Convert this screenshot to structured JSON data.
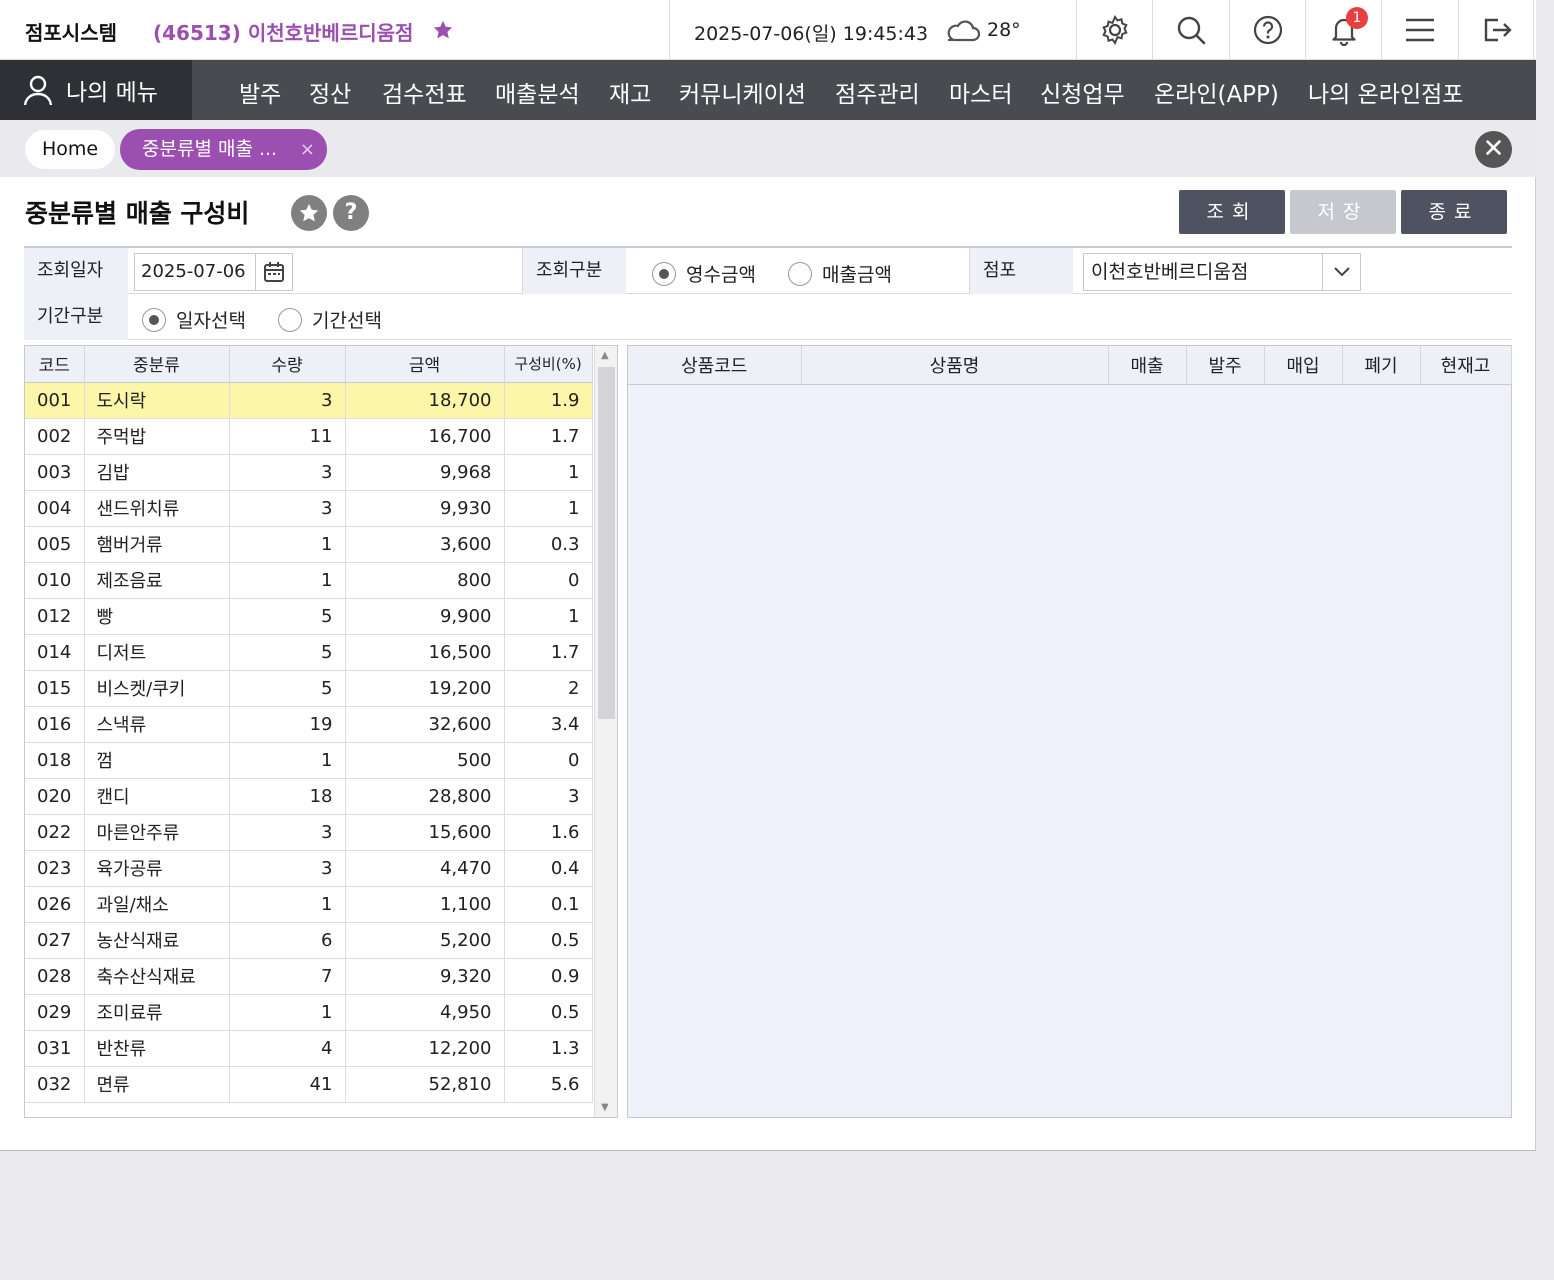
{
  "header": {
    "app_title": "점포시스템",
    "store": "(46513) 이천호반베르디움점",
    "datetime": "2025-07-06(일) 19:45:43",
    "temperature": "28°",
    "notification_count": "1",
    "brand_color": "#9b4fb0"
  },
  "nav": {
    "my_menu": "나의 메뉴",
    "items": [
      "발주",
      "정산",
      "검수전표",
      "매출분석",
      "재고",
      "커뮤니케이션",
      "점주관리",
      "마스터",
      "신청업무",
      "온라인(APP)",
      "나의 온라인점포"
    ]
  },
  "tabs": {
    "home": "Home",
    "active": "중분류별 매출 ...",
    "close_symbol": "×",
    "close_all_symbol": "✕"
  },
  "page": {
    "title": "중분류별 매출 구성비",
    "buttons": {
      "search": "조회",
      "save": "저장",
      "exit": "종료"
    }
  },
  "filter": {
    "date_label": "조회일자",
    "date_value": "2025-07-06",
    "type_label": "조회구분",
    "type_options": [
      "영수금액",
      "매출금액"
    ],
    "type_selected": "영수금액",
    "store_label": "점포",
    "store_value": "이천호반베르디움점",
    "period_label": "기간구분",
    "period_options": [
      "일자선택",
      "기간선택"
    ],
    "period_selected": "일자선택"
  },
  "left_grid": {
    "columns": [
      "코드",
      "중분류",
      "수량",
      "금액",
      "구성비(%)"
    ],
    "rows": [
      [
        "001",
        "도시락",
        "3",
        "18,700",
        "1.9"
      ],
      [
        "002",
        "주먹밥",
        "11",
        "16,700",
        "1.7"
      ],
      [
        "003",
        "김밥",
        "3",
        "9,968",
        "1"
      ],
      [
        "004",
        "샌드위치류",
        "3",
        "9,930",
        "1"
      ],
      [
        "005",
        "햄버거류",
        "1",
        "3,600",
        "0.3"
      ],
      [
        "010",
        "제조음료",
        "1",
        "800",
        "0"
      ],
      [
        "012",
        "빵",
        "5",
        "9,900",
        "1"
      ],
      [
        "014",
        "디저트",
        "5",
        "16,500",
        "1.7"
      ],
      [
        "015",
        "비스켓/쿠키",
        "5",
        "19,200",
        "2"
      ],
      [
        "016",
        "스낵류",
        "19",
        "32,600",
        "3.4"
      ],
      [
        "018",
        "껌",
        "1",
        "500",
        "0"
      ],
      [
        "020",
        "캔디",
        "18",
        "28,800",
        "3"
      ],
      [
        "022",
        "마른안주류",
        "3",
        "15,600",
        "1.6"
      ],
      [
        "023",
        "육가공류",
        "3",
        "4,470",
        "0.4"
      ],
      [
        "026",
        "과일/채소",
        "1",
        "1,100",
        "0.1"
      ],
      [
        "027",
        "농산식재료",
        "6",
        "5,200",
        "0.5"
      ],
      [
        "028",
        "축수산식재료",
        "7",
        "9,320",
        "0.9"
      ],
      [
        "029",
        "조미료류",
        "1",
        "4,950",
        "0.5"
      ],
      [
        "031",
        "반찬류",
        "4",
        "12,200",
        "1.3"
      ],
      [
        "032",
        "면류",
        "41",
        "52,810",
        "5.6"
      ]
    ],
    "selected_index": 0
  },
  "right_grid": {
    "columns": [
      "상품코드",
      "상품명",
      "매출",
      "발주",
      "매입",
      "폐기",
      "현재고"
    ]
  }
}
